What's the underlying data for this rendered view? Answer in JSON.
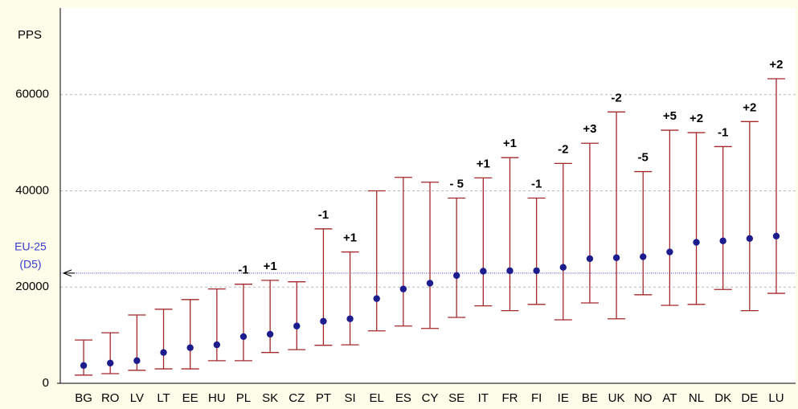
{
  "chart_data": {
    "type": "range",
    "y_label": "PPS",
    "categories": [
      "BG",
      "RO",
      "LV",
      "LT",
      "EE",
      "HU",
      "PL",
      "SK",
      "CZ",
      "PT",
      "SI",
      "EL",
      "ES",
      "CY",
      "SE",
      "IT",
      "FR",
      "FI",
      "IE",
      "BE",
      "UK",
      "NO",
      "AT",
      "NL",
      "DK",
      "DE",
      "LU"
    ],
    "values": [
      3700,
      4200,
      4700,
      6400,
      7400,
      8000,
      9700,
      10200,
      11900,
      12900,
      13400,
      17600,
      19600,
      20800,
      22400,
      23300,
      23400,
      23400,
      24100,
      25900,
      26100,
      26300,
      27300,
      29300,
      29600,
      30100,
      30600
    ],
    "low": [
      1700,
      2000,
      2700,
      3000,
      3000,
      4700,
      4700,
      6400,
      7000,
      7900,
      8000,
      10900,
      11900,
      11400,
      13700,
      16100,
      15100,
      16400,
      13200,
      16700,
      13400,
      18400,
      16200,
      16400,
      19500,
      15100,
      18700
    ],
    "high": [
      9000,
      10500,
      14200,
      15400,
      17400,
      19600,
      20600,
      21400,
      21100,
      32100,
      27300,
      40000,
      42800,
      41800,
      38500,
      42700,
      46900,
      38500,
      45700,
      49900,
      56400,
      44000,
      52600,
      52100,
      49200,
      54400,
      63300
    ],
    "annotations": [
      null,
      null,
      null,
      null,
      null,
      null,
      "-1",
      "+1",
      null,
      "-1",
      "+1",
      null,
      null,
      null,
      "- 5",
      "+1",
      "+1",
      "-1",
      "-2",
      "+3",
      "-2",
      "-5",
      "+5",
      "+2",
      "-1",
      "+2",
      "+2"
    ],
    "range_color": "#a3282c",
    "point_color": "#1c1c8e",
    "reference": {
      "value": 22900,
      "label": [
        "EU-25",
        "(D5)"
      ],
      "color": "#3a3ad0"
    },
    "ylim": [
      0,
      78000
    ],
    "yticks": [
      0,
      20000,
      40000,
      60000
    ],
    "grid": true
  }
}
